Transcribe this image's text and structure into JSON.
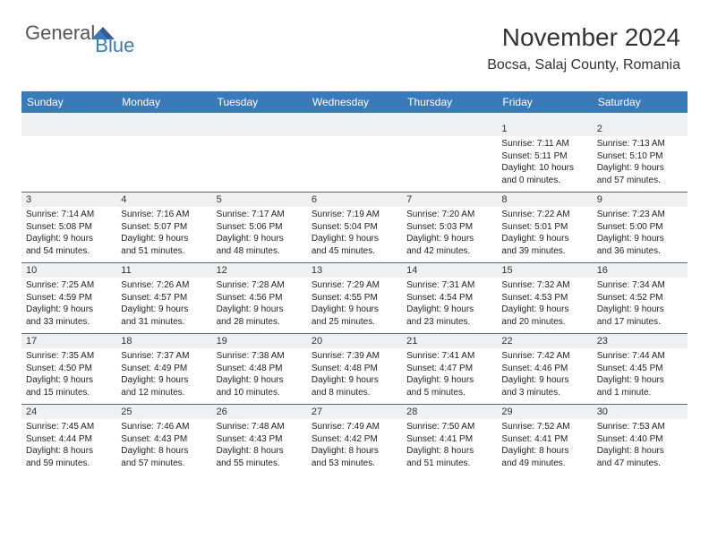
{
  "logo": {
    "text1": "General",
    "text2": "Blue"
  },
  "header": {
    "title": "November 2024",
    "location": "Bocsa, Salaj County, Romania"
  },
  "colors": {
    "header_bg": "#3a7ab8",
    "header_fg": "#ffffff",
    "daynum_bg": "#eef0f2",
    "border": "#5c6b78",
    "page_bg": "#ffffff"
  },
  "day_headers": [
    "Sunday",
    "Monday",
    "Tuesday",
    "Wednesday",
    "Thursday",
    "Friday",
    "Saturday"
  ],
  "weeks": [
    [
      {
        "empty": true
      },
      {
        "empty": true
      },
      {
        "empty": true
      },
      {
        "empty": true
      },
      {
        "empty": true
      },
      {
        "day": "1",
        "sunrise": "Sunrise: 7:11 AM",
        "sunset": "Sunset: 5:11 PM",
        "daylight1": "Daylight: 10 hours",
        "daylight2": "and 0 minutes."
      },
      {
        "day": "2",
        "sunrise": "Sunrise: 7:13 AM",
        "sunset": "Sunset: 5:10 PM",
        "daylight1": "Daylight: 9 hours",
        "daylight2": "and 57 minutes."
      }
    ],
    [
      {
        "day": "3",
        "sunrise": "Sunrise: 7:14 AM",
        "sunset": "Sunset: 5:08 PM",
        "daylight1": "Daylight: 9 hours",
        "daylight2": "and 54 minutes."
      },
      {
        "day": "4",
        "sunrise": "Sunrise: 7:16 AM",
        "sunset": "Sunset: 5:07 PM",
        "daylight1": "Daylight: 9 hours",
        "daylight2": "and 51 minutes."
      },
      {
        "day": "5",
        "sunrise": "Sunrise: 7:17 AM",
        "sunset": "Sunset: 5:06 PM",
        "daylight1": "Daylight: 9 hours",
        "daylight2": "and 48 minutes."
      },
      {
        "day": "6",
        "sunrise": "Sunrise: 7:19 AM",
        "sunset": "Sunset: 5:04 PM",
        "daylight1": "Daylight: 9 hours",
        "daylight2": "and 45 minutes."
      },
      {
        "day": "7",
        "sunrise": "Sunrise: 7:20 AM",
        "sunset": "Sunset: 5:03 PM",
        "daylight1": "Daylight: 9 hours",
        "daylight2": "and 42 minutes."
      },
      {
        "day": "8",
        "sunrise": "Sunrise: 7:22 AM",
        "sunset": "Sunset: 5:01 PM",
        "daylight1": "Daylight: 9 hours",
        "daylight2": "and 39 minutes."
      },
      {
        "day": "9",
        "sunrise": "Sunrise: 7:23 AM",
        "sunset": "Sunset: 5:00 PM",
        "daylight1": "Daylight: 9 hours",
        "daylight2": "and 36 minutes."
      }
    ],
    [
      {
        "day": "10",
        "sunrise": "Sunrise: 7:25 AM",
        "sunset": "Sunset: 4:59 PM",
        "daylight1": "Daylight: 9 hours",
        "daylight2": "and 33 minutes."
      },
      {
        "day": "11",
        "sunrise": "Sunrise: 7:26 AM",
        "sunset": "Sunset: 4:57 PM",
        "daylight1": "Daylight: 9 hours",
        "daylight2": "and 31 minutes."
      },
      {
        "day": "12",
        "sunrise": "Sunrise: 7:28 AM",
        "sunset": "Sunset: 4:56 PM",
        "daylight1": "Daylight: 9 hours",
        "daylight2": "and 28 minutes."
      },
      {
        "day": "13",
        "sunrise": "Sunrise: 7:29 AM",
        "sunset": "Sunset: 4:55 PM",
        "daylight1": "Daylight: 9 hours",
        "daylight2": "and 25 minutes."
      },
      {
        "day": "14",
        "sunrise": "Sunrise: 7:31 AM",
        "sunset": "Sunset: 4:54 PM",
        "daylight1": "Daylight: 9 hours",
        "daylight2": "and 23 minutes."
      },
      {
        "day": "15",
        "sunrise": "Sunrise: 7:32 AM",
        "sunset": "Sunset: 4:53 PM",
        "daylight1": "Daylight: 9 hours",
        "daylight2": "and 20 minutes."
      },
      {
        "day": "16",
        "sunrise": "Sunrise: 7:34 AM",
        "sunset": "Sunset: 4:52 PM",
        "daylight1": "Daylight: 9 hours",
        "daylight2": "and 17 minutes."
      }
    ],
    [
      {
        "day": "17",
        "sunrise": "Sunrise: 7:35 AM",
        "sunset": "Sunset: 4:50 PM",
        "daylight1": "Daylight: 9 hours",
        "daylight2": "and 15 minutes."
      },
      {
        "day": "18",
        "sunrise": "Sunrise: 7:37 AM",
        "sunset": "Sunset: 4:49 PM",
        "daylight1": "Daylight: 9 hours",
        "daylight2": "and 12 minutes."
      },
      {
        "day": "19",
        "sunrise": "Sunrise: 7:38 AM",
        "sunset": "Sunset: 4:48 PM",
        "daylight1": "Daylight: 9 hours",
        "daylight2": "and 10 minutes."
      },
      {
        "day": "20",
        "sunrise": "Sunrise: 7:39 AM",
        "sunset": "Sunset: 4:48 PM",
        "daylight1": "Daylight: 9 hours",
        "daylight2": "and 8 minutes."
      },
      {
        "day": "21",
        "sunrise": "Sunrise: 7:41 AM",
        "sunset": "Sunset: 4:47 PM",
        "daylight1": "Daylight: 9 hours",
        "daylight2": "and 5 minutes."
      },
      {
        "day": "22",
        "sunrise": "Sunrise: 7:42 AM",
        "sunset": "Sunset: 4:46 PM",
        "daylight1": "Daylight: 9 hours",
        "daylight2": "and 3 minutes."
      },
      {
        "day": "23",
        "sunrise": "Sunrise: 7:44 AM",
        "sunset": "Sunset: 4:45 PM",
        "daylight1": "Daylight: 9 hours",
        "daylight2": "and 1 minute."
      }
    ],
    [
      {
        "day": "24",
        "sunrise": "Sunrise: 7:45 AM",
        "sunset": "Sunset: 4:44 PM",
        "daylight1": "Daylight: 8 hours",
        "daylight2": "and 59 minutes."
      },
      {
        "day": "25",
        "sunrise": "Sunrise: 7:46 AM",
        "sunset": "Sunset: 4:43 PM",
        "daylight1": "Daylight: 8 hours",
        "daylight2": "and 57 minutes."
      },
      {
        "day": "26",
        "sunrise": "Sunrise: 7:48 AM",
        "sunset": "Sunset: 4:43 PM",
        "daylight1": "Daylight: 8 hours",
        "daylight2": "and 55 minutes."
      },
      {
        "day": "27",
        "sunrise": "Sunrise: 7:49 AM",
        "sunset": "Sunset: 4:42 PM",
        "daylight1": "Daylight: 8 hours",
        "daylight2": "and 53 minutes."
      },
      {
        "day": "28",
        "sunrise": "Sunrise: 7:50 AM",
        "sunset": "Sunset: 4:41 PM",
        "daylight1": "Daylight: 8 hours",
        "daylight2": "and 51 minutes."
      },
      {
        "day": "29",
        "sunrise": "Sunrise: 7:52 AM",
        "sunset": "Sunset: 4:41 PM",
        "daylight1": "Daylight: 8 hours",
        "daylight2": "and 49 minutes."
      },
      {
        "day": "30",
        "sunrise": "Sunrise: 7:53 AM",
        "sunset": "Sunset: 4:40 PM",
        "daylight1": "Daylight: 8 hours",
        "daylight2": "and 47 minutes."
      }
    ]
  ]
}
